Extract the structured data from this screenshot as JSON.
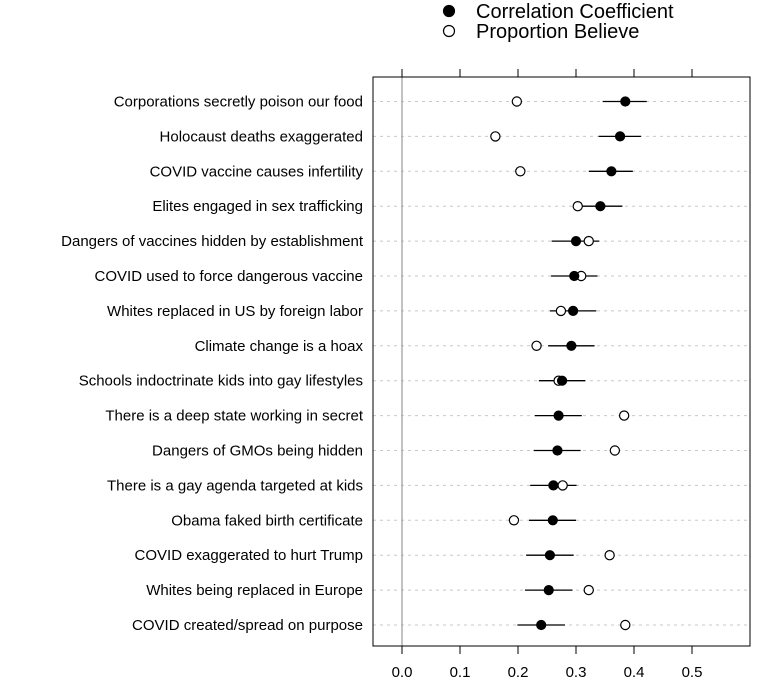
{
  "chart_data": {
    "type": "scatter",
    "title": "",
    "xlabel": "",
    "ylabel": "",
    "xlim": [
      -0.05,
      0.6
    ],
    "x_ticks": [
      "0.0",
      "0.1",
      "0.2",
      "0.3",
      "0.4",
      "0.5"
    ],
    "x_tick_values": [
      0.0,
      0.1,
      0.2,
      0.3,
      0.4,
      0.5
    ],
    "reference_line": 0.0,
    "grid": "horizontal dashed",
    "legend": {
      "placement": "top",
      "entries": [
        {
          "label": "Correlation Coefficient",
          "marker": "filled-circle"
        },
        {
          "label": "Proportion Believe",
          "marker": "open-circle"
        }
      ]
    },
    "categories": [
      "Corporations secretly poison our food",
      "Holocaust deaths exaggerated",
      "COVID vaccine causes infertility",
      "Elites engaged in sex trafficking",
      "Dangers of vaccines hidden by establishment",
      "COVID used to force dangerous vaccine",
      "Whites replaced in US by foreign labor",
      "Climate change is a hoax",
      "Schools indoctrinate kids into gay lifestyles",
      "There is a deep state working in secret",
      "Dangers of GMOs being hidden",
      "There is a gay agenda targeted at kids",
      "Obama faked birth certificate",
      "COVID exaggerated to hurt Trump",
      "Whites being replaced in Europe",
      "COVID created/spread on purpose"
    ],
    "series": [
      {
        "name": "Correlation Coefficient",
        "values": [
          0.385,
          0.376,
          0.361,
          0.342,
          0.3,
          0.297,
          0.295,
          0.292,
          0.276,
          0.27,
          0.268,
          0.261,
          0.26,
          0.255,
          0.253,
          0.24
        ],
        "ci_low": [
          0.346,
          0.339,
          0.322,
          0.302,
          0.258,
          0.257,
          0.255,
          0.252,
          0.236,
          0.229,
          0.227,
          0.221,
          0.219,
          0.214,
          0.212,
          0.199
        ],
        "ci_high": [
          0.422,
          0.412,
          0.398,
          0.38,
          0.34,
          0.337,
          0.335,
          0.332,
          0.316,
          0.31,
          0.308,
          0.301,
          0.3,
          0.296,
          0.294,
          0.281
        ]
      },
      {
        "name": "Proportion Believe",
        "values": [
          0.198,
          0.161,
          0.204,
          0.303,
          0.322,
          0.309,
          0.274,
          0.232,
          0.27,
          0.383,
          0.367,
          0.277,
          0.193,
          0.358,
          0.322,
          0.385
        ]
      }
    ]
  }
}
